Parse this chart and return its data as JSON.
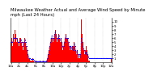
{
  "title": "Milwaukee Weather Actual and Average Wind Speed by Minute mph (Last 24 Hours)",
  "title2": "mph (Last 24 Hours)",
  "bar_color": "#ff0000",
  "line_color": "#0000ff",
  "background_color": "#ffffff",
  "plot_bg_color": "#ffffff",
  "grid_color": "#aaaaaa",
  "ylim": [
    0,
    11
  ],
  "yticks": [
    1,
    2,
    3,
    4,
    5,
    6,
    7,
    8,
    9,
    10
  ],
  "ytick_labels": [
    "1",
    "2",
    "3",
    "4",
    "5",
    "6",
    "7",
    "8",
    "9",
    "10"
  ],
  "n_points": 144,
  "title_fontsize": 3.8,
  "tick_fontsize": 2.8,
  "ytick_fontsize": 2.8,
  "bar_data": [
    5,
    6,
    4,
    7,
    5,
    6,
    8,
    7,
    5,
    6,
    5,
    4,
    6,
    7,
    6,
    5,
    4,
    3,
    5,
    6,
    7,
    5,
    4,
    3,
    2,
    1,
    1,
    0.5,
    1,
    0.5,
    0.5,
    1,
    0.5,
    0,
    0.5,
    0,
    0,
    0.5,
    0,
    0,
    0,
    0.5,
    0,
    0,
    0,
    0,
    0.5,
    0,
    0,
    0,
    0,
    0.5,
    1,
    2,
    3,
    4,
    5,
    6,
    7,
    6,
    5,
    6,
    7,
    8,
    7,
    6,
    5,
    6,
    7,
    6,
    5,
    6,
    5,
    4,
    3,
    4,
    5,
    6,
    7,
    6,
    5,
    6,
    5,
    4,
    3,
    4,
    3,
    4,
    3,
    4,
    5,
    4,
    3,
    2,
    3,
    2,
    1,
    2,
    1,
    2,
    10.5,
    7,
    5,
    4,
    3,
    2,
    3,
    4,
    3,
    2,
    1,
    0.5,
    0.5,
    0,
    0,
    0,
    0,
    0,
    0,
    0,
    0,
    0,
    0,
    0,
    0,
    0,
    0,
    0,
    0,
    0,
    0,
    0,
    0,
    0,
    0,
    0,
    0,
    0,
    0,
    0,
    0,
    0,
    0,
    1,
    1
  ],
  "avg_data": [
    5,
    5,
    5,
    5.5,
    6,
    6,
    6,
    6,
    5.5,
    5.5,
    5,
    5,
    5,
    5.5,
    5.5,
    5,
    5,
    4,
    4.5,
    5,
    5.5,
    5,
    4,
    3,
    2,
    1.5,
    1,
    1,
    0.8,
    0.8,
    0.8,
    0.8,
    0.8,
    0.5,
    0.5,
    0.3,
    0.3,
    0.3,
    0.3,
    0.3,
    0.3,
    0.3,
    0.3,
    0.3,
    0.3,
    0.3,
    0.3,
    0.3,
    0.3,
    0.3,
    0.3,
    0.5,
    1,
    2,
    3,
    4,
    5,
    6,
    6.5,
    6,
    5.5,
    6,
    7,
    7.5,
    6.5,
    6,
    5.5,
    6,
    6.5,
    6,
    5.5,
    6,
    5,
    4,
    3.5,
    4,
    5,
    6,
    6.5,
    6,
    5.5,
    6,
    5,
    4,
    3.5,
    4,
    3.5,
    4,
    3,
    3.5,
    4.5,
    4,
    3,
    2.5,
    3,
    2,
    1.5,
    2,
    1.5,
    2,
    6,
    5,
    4,
    3.5,
    3,
    2.5,
    2,
    2.5,
    2.5,
    2,
    1.5,
    1,
    1,
    1,
    1,
    1,
    1,
    1,
    1,
    1,
    1,
    1,
    1,
    1,
    1,
    1,
    1,
    1,
    1,
    1,
    1,
    1,
    1,
    1,
    1,
    1,
    1,
    1,
    1,
    1,
    1,
    1,
    1
  ]
}
